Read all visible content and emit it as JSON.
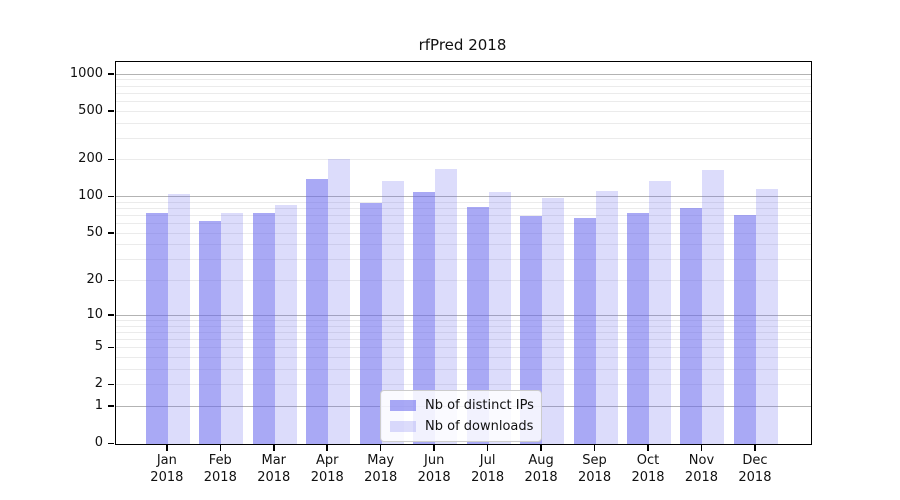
{
  "chart_data": {
    "type": "bar",
    "title": "rfPred 2018",
    "categories": [
      {
        "line1": "Jan",
        "line2": "2018"
      },
      {
        "line1": "Feb",
        "line2": "2018"
      },
      {
        "line1": "Mar",
        "line2": "2018"
      },
      {
        "line1": "Apr",
        "line2": "2018"
      },
      {
        "line1": "May",
        "line2": "2018"
      },
      {
        "line1": "Jun",
        "line2": "2018"
      },
      {
        "line1": "Jul",
        "line2": "2018"
      },
      {
        "line1": "Aug",
        "line2": "2018"
      },
      {
        "line1": "Sep",
        "line2": "2018"
      },
      {
        "line1": "Oct",
        "line2": "2018"
      },
      {
        "line1": "Nov",
        "line2": "2018"
      },
      {
        "line1": "Dec",
        "line2": "2018"
      }
    ],
    "series": [
      {
        "name": "Nb of distinct IPs",
        "color": "rgba(102,102,238,0.56)",
        "values": [
          74,
          64,
          74,
          140,
          90,
          110,
          83,
          70,
          68,
          74,
          81,
          71
        ]
      },
      {
        "name": "Nb of downloads",
        "color": "rgba(102,102,238,0.23)",
        "values": [
          107,
          75,
          87,
          204,
          137,
          170,
          110,
          99,
          112,
          136,
          168,
          118
        ]
      }
    ],
    "xlabel": "",
    "ylabel": "",
    "yscale": "log1p",
    "ylim": [
      0,
      1240
    ],
    "yticks": [
      0,
      1,
      2,
      5,
      10,
      20,
      50,
      100,
      200,
      500,
      1000
    ],
    "grid_major_values": [
      1,
      10,
      100,
      1000
    ],
    "grid_minor_values": [
      2,
      3,
      4,
      5,
      6,
      7,
      8,
      9,
      20,
      30,
      40,
      50,
      60,
      70,
      80,
      90,
      200,
      300,
      400,
      500,
      600,
      700,
      800,
      900
    ],
    "legend": {
      "position": "lower center",
      "items": [
        "Nb of distinct IPs",
        "Nb of downloads"
      ]
    }
  }
}
